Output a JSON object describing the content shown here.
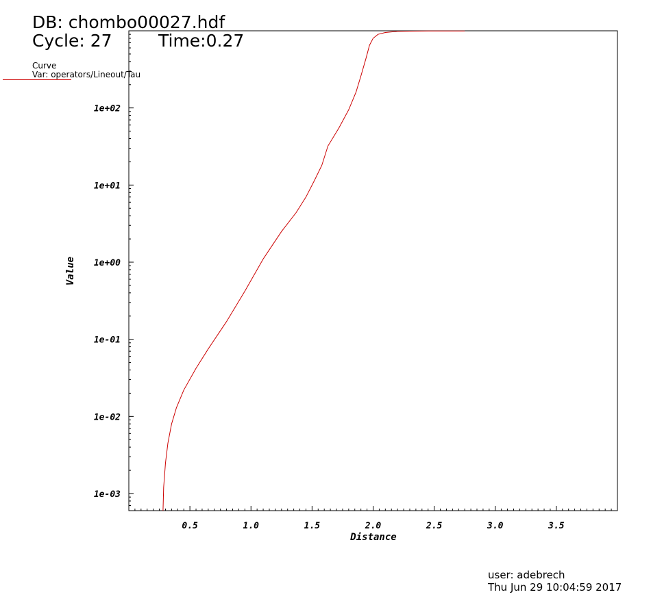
{
  "header": {
    "db_label": "DB: chombo00027.hdf",
    "cycle_label": "Cycle: 27",
    "time_label": "Time:0.27"
  },
  "legend": {
    "title": "Curve",
    "var": "Var: operators/Lineout/Tau",
    "color": "#cc0000"
  },
  "footer": {
    "user": "user: adebrech",
    "date": "Thu Jun 29 10:04:59 2017"
  },
  "chart_data": {
    "type": "line",
    "title": "",
    "xlabel": "Distance",
    "ylabel": "Value",
    "y_scale": "log",
    "xlim": [
      0.0,
      4.0
    ],
    "ylim": [
      0.0006,
      1000
    ],
    "x_ticks": [
      0.5,
      1.0,
      1.5,
      2.0,
      2.5,
      3.0,
      3.5
    ],
    "x_tick_labels": [
      "0.5",
      "1.0",
      "1.5",
      "2.0",
      "2.5",
      "3.0",
      "3.5"
    ],
    "y_ticks": [
      0.001,
      0.01,
      0.1,
      1,
      10,
      100
    ],
    "y_tick_labels": [
      "1e-03",
      "1e-02",
      "1e-01",
      "1e+00",
      "1e+01",
      "1e+02"
    ],
    "grid": false,
    "series": [
      {
        "color": "#cc0000",
        "x": [
          0.28,
          0.285,
          0.3,
          0.32,
          0.35,
          0.39,
          0.45,
          0.55,
          0.65,
          0.8,
          0.95,
          1.1,
          1.25,
          1.37,
          1.45,
          1.52,
          1.58,
          1.63,
          1.72,
          1.8,
          1.86,
          1.9,
          1.94,
          1.97,
          2.0,
          2.04,
          2.1,
          2.2,
          2.3,
          2.45,
          2.6,
          2.75
        ],
        "y": [
          0.0006,
          0.0012,
          0.0025,
          0.0045,
          0.008,
          0.013,
          0.022,
          0.042,
          0.075,
          0.17,
          0.42,
          1.1,
          2.5,
          4.4,
          7.0,
          11.5,
          18,
          32,
          55,
          95,
          160,
          260,
          430,
          650,
          800,
          900,
          950,
          985,
          990,
          995,
          995,
          995
        ]
      }
    ]
  }
}
